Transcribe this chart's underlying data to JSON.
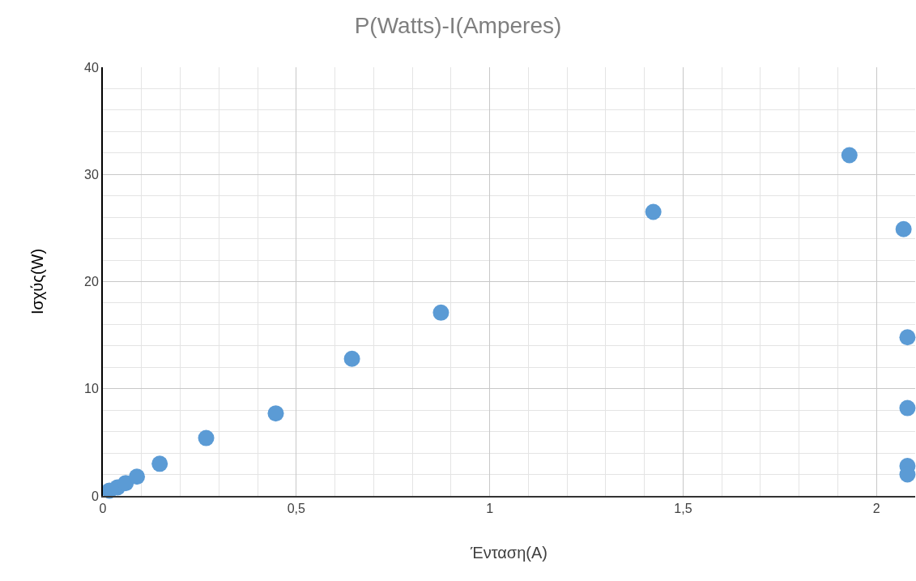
{
  "chart_data": {
    "type": "scatter",
    "title": "P(Watts)-I(Amperes)",
    "xlabel": "Ένταση(A)",
    "ylabel": "Ισχύς(W)",
    "x": [
      0.017,
      0.038,
      0.059,
      0.088,
      0.147,
      0.267,
      0.447,
      0.644,
      0.874,
      1.423,
      1.93,
      2.07,
      2.08,
      2.08,
      2.08,
      2.08
    ],
    "series": [
      {
        "color": "#5b9bd5",
        "values": [
          0.5,
          0.8,
          1.2,
          1.8,
          3.0,
          5.4,
          7.7,
          12.8,
          17.1,
          26.5,
          31.8,
          24.9,
          14.8,
          8.2,
          2.8,
          2.0
        ]
      }
    ],
    "xlim": [
      0,
      2.1
    ],
    "ylim": [
      0,
      40
    ],
    "xticks": [
      0,
      {
        "value": 0.5,
        "label": "0,5"
      },
      1,
      {
        "value": 1.5,
        "label": "1,5"
      },
      2
    ],
    "yticks": [
      0,
      10,
      20,
      30,
      40
    ],
    "grid": true,
    "marker": "circle"
  }
}
